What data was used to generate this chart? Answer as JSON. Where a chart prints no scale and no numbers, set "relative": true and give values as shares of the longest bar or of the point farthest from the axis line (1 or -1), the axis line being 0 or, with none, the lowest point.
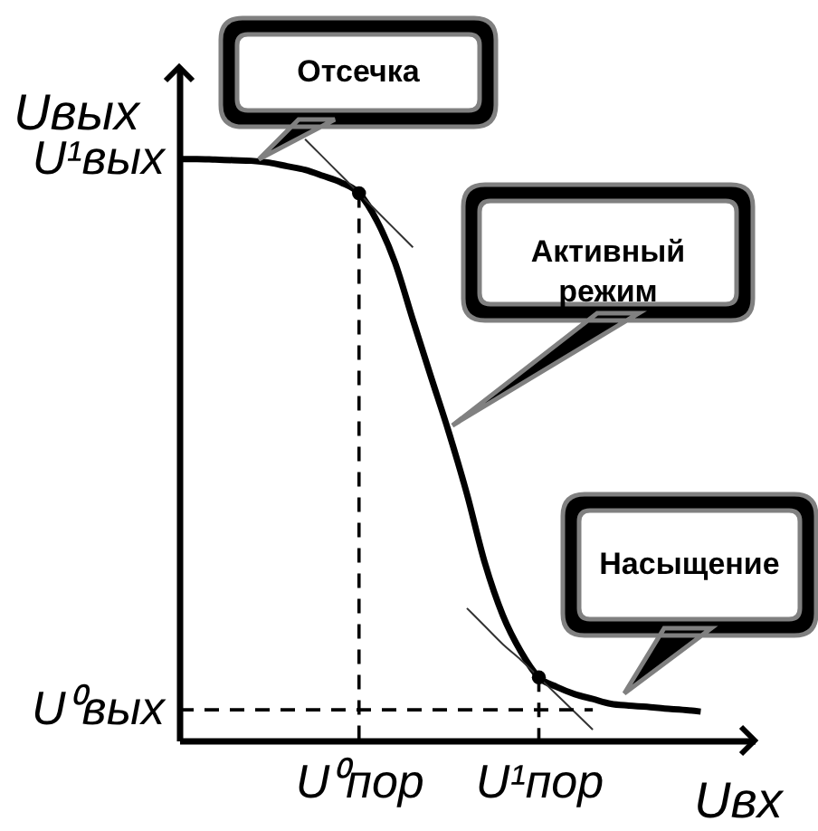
{
  "chart_data": {
    "type": "line",
    "relative": true,
    "xlabel": "Uвх",
    "ylabel": "Uвых",
    "categories": [
      null,
      null,
      null,
      null,
      null,
      null,
      null,
      null,
      null,
      null,
      "U⁰пор",
      null,
      null,
      null,
      null,
      null,
      null,
      null,
      null,
      null,
      "U¹пор",
      null,
      null,
      null,
      null,
      null,
      null,
      null,
      null,
      null,
      null,
      null,
      null
    ],
    "series": [
      {
        "values": [
          0.967,
          0.967,
          0.966,
          0.965,
          0.964,
          0.961,
          0.955,
          0.949,
          0.939,
          0.928,
          0.91,
          0.864,
          0.795,
          0.699,
          0.605,
          0.512,
          0.41,
          0.295,
          0.208,
          0.148,
          0.105,
          0.089,
          0.077,
          0.069,
          0.061,
          0.058,
          0.056,
          0.053,
          0.051,
          0.048,
          null,
          null,
          null
        ],
        "color": "#000000"
      },
      {
        "type": "line",
        "values": [
          null,
          null,
          null,
          null,
          null,
          null,
          null,
          1.0,
          0.97,
          0.94,
          0.91,
          0.88,
          0.85,
          0.82,
          null,
          null,
          null,
          null,
          null,
          null,
          null,
          null,
          null,
          null,
          null,
          null,
          null,
          null,
          null,
          null,
          null,
          null,
          null
        ],
        "color": "#333333"
      },
      {
        "type": "line",
        "values": [
          null,
          null,
          null,
          null,
          null,
          null,
          null,
          null,
          null,
          null,
          null,
          null,
          null,
          null,
          null,
          null,
          0.22,
          0.19,
          0.16,
          0.134,
          0.105,
          0.076,
          0.047,
          0.018,
          null,
          null,
          null,
          null,
          null,
          null,
          null,
          null,
          null
        ],
        "color": "#333333"
      },
      {
        "type": "line",
        "values": [
          0.051,
          0.051,
          0.051,
          0.051,
          0.051,
          0.051,
          0.051,
          0.051,
          0.051,
          0.051,
          0.051,
          0.051,
          0.051,
          0.051,
          0.051,
          0.051,
          0.051,
          0.051,
          0.051,
          0.051,
          0.051,
          0.051,
          0.051,
          0.051,
          null,
          null,
          null,
          null,
          null,
          null,
          null,
          null,
          null
        ],
        "color": "#000000",
        "line_style": "dashed"
      },
      {
        "type": "lollipop",
        "values": [
          null,
          null,
          null,
          null,
          null,
          null,
          null,
          null,
          null,
          null,
          0.91,
          null,
          null,
          null,
          null,
          null,
          null,
          null,
          null,
          null,
          0.105,
          null,
          null,
          null,
          null,
          null,
          null,
          null,
          null,
          null,
          null,
          null,
          null
        ],
        "color": "#000000",
        "line_style": "dashed",
        "marker": "circle"
      }
    ],
    "annotations": [
      "U¹вых",
      "U⁰вых",
      "Отсечка",
      "Активный режим",
      "Насыщение"
    ]
  }
}
